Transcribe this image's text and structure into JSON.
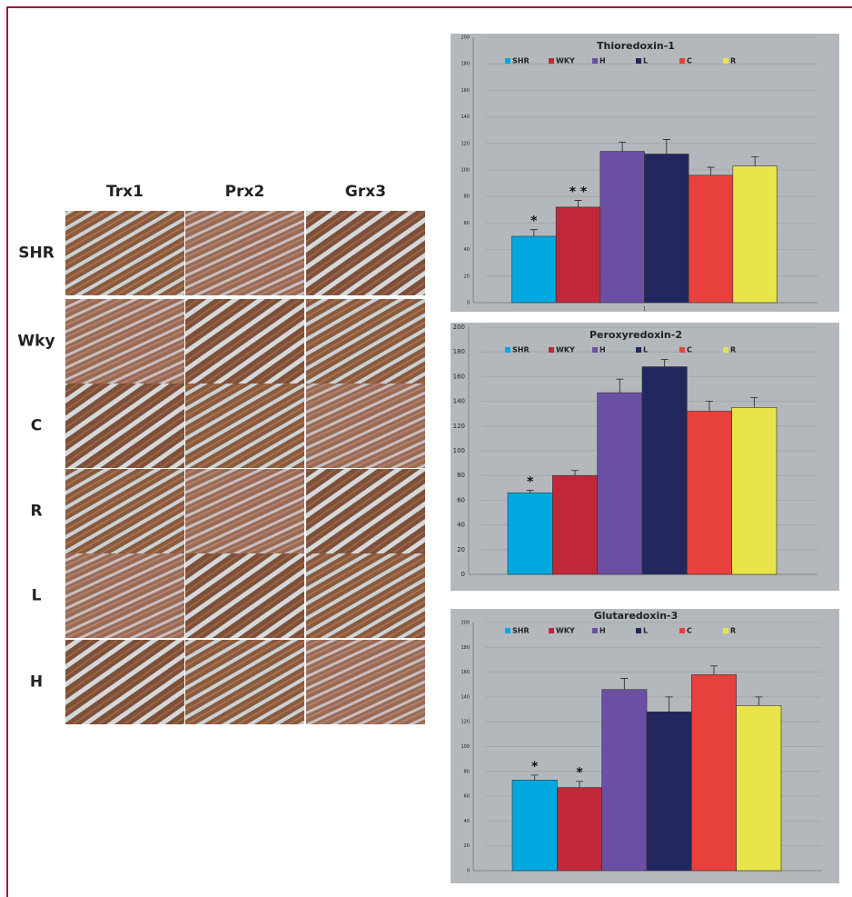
{
  "micrographs": {
    "columns": [
      "Trx1",
      "Prx2",
      "Grx3"
    ],
    "rows": [
      "SHR",
      "Wky",
      "C",
      "R",
      "L",
      "H"
    ]
  },
  "chart_data": [
    {
      "type": "bar",
      "title": "Thioredoxin-1",
      "categories": [
        "1"
      ],
      "series": [
        {
          "name": "SHR",
          "color": "#00a8e0",
          "values": [
            50
          ],
          "errors": [
            5
          ]
        },
        {
          "name": "WKY",
          "color": "#c0283a",
          "values": [
            72
          ],
          "errors": [
            5
          ]
        },
        {
          "name": "H",
          "color": "#6a4fa3",
          "values": [
            114
          ],
          "errors": [
            7
          ]
        },
        {
          "name": "L",
          "color": "#22285e",
          "values": [
            112
          ],
          "errors": [
            11
          ]
        },
        {
          "name": "C",
          "color": "#e8403d",
          "values": [
            96
          ],
          "errors": [
            6
          ]
        },
        {
          "name": "R",
          "color": "#e8e44a",
          "values": [
            103
          ],
          "errors": [
            7
          ]
        }
      ],
      "annotations": [
        "*",
        "* *",
        null,
        null,
        null,
        null
      ],
      "ylim": [
        0,
        200
      ],
      "yticks": [
        0,
        20,
        40,
        60,
        80,
        100,
        120,
        140,
        160,
        180,
        200
      ],
      "grid": true,
      "legend": "top"
    },
    {
      "type": "bar",
      "title": "Peroxyredoxin-2",
      "categories": [
        null
      ],
      "series": [
        {
          "name": "SHR",
          "color": "#00a8e0",
          "values": [
            66
          ],
          "errors": [
            2
          ]
        },
        {
          "name": "WKY",
          "color": "#c0283a",
          "values": [
            80
          ],
          "errors": [
            4
          ]
        },
        {
          "name": "H",
          "color": "#6a4fa3",
          "values": [
            147
          ],
          "errors": [
            11
          ]
        },
        {
          "name": "L",
          "color": "#22285e",
          "values": [
            168
          ],
          "errors": [
            6
          ]
        },
        {
          "name": "C",
          "color": "#e8403d",
          "values": [
            132
          ],
          "errors": [
            8
          ]
        },
        {
          "name": "R",
          "color": "#e8e44a",
          "values": [
            135
          ],
          "errors": [
            8
          ]
        }
      ],
      "annotations": [
        "*",
        null,
        null,
        null,
        null,
        null
      ],
      "ylim": [
        0,
        200
      ],
      "yticks": [
        0,
        20,
        40,
        60,
        80,
        100,
        120,
        140,
        160,
        180,
        200
      ],
      "grid": true,
      "legend": "top"
    },
    {
      "type": "bar",
      "title": "Glutaredoxin-3",
      "categories": [
        null
      ],
      "series": [
        {
          "name": "SHR",
          "color": "#00a8e0",
          "values": [
            73
          ],
          "errors": [
            4
          ]
        },
        {
          "name": "WKY",
          "color": "#c0283a",
          "values": [
            67
          ],
          "errors": [
            5
          ]
        },
        {
          "name": "H",
          "color": "#6a4fa3",
          "values": [
            146
          ],
          "errors": [
            9
          ]
        },
        {
          "name": "L",
          "color": "#22285e",
          "values": [
            128
          ],
          "errors": [
            12
          ]
        },
        {
          "name": "C",
          "color": "#e8403d",
          "values": [
            158
          ],
          "errors": [
            7
          ]
        },
        {
          "name": "R",
          "color": "#e8e44a",
          "values": [
            133
          ],
          "errors": [
            7
          ]
        }
      ],
      "annotations": [
        "*",
        "*",
        null,
        null,
        null,
        null
      ],
      "ylim": [
        0,
        200
      ],
      "yticks": [
        0,
        20,
        40,
        60,
        80,
        100,
        120,
        140,
        160,
        180,
        200
      ],
      "grid": true,
      "legend": "top"
    }
  ]
}
